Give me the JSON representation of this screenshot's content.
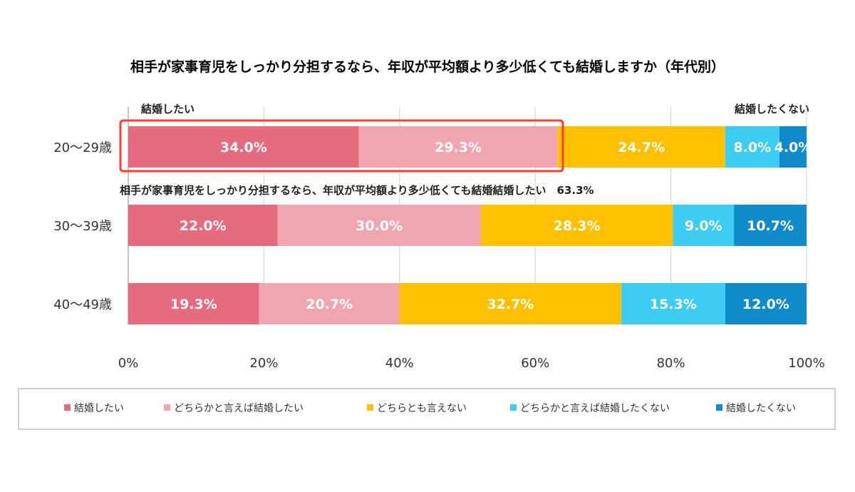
{
  "chart_data": {
    "type": "bar",
    "orientation": "horizontal",
    "stacked": true,
    "percent_stacked": true,
    "title": "相手が家事育児をしっかり分担するなら、年収が平均額より多少低くても結婚しますか（年代別）",
    "categories": [
      "20～29歳",
      "30～39歳",
      "40～49歳"
    ],
    "series": [
      {
        "name": "結婚したい",
        "color": "#e56b7e",
        "values": [
          34.0,
          22.0,
          19.3
        ],
        "labels": [
          "34.0%",
          "22.0%",
          "19.3%"
        ]
      },
      {
        "name": "どちらかと言えば結婚したい",
        "color": "#efa6b1",
        "values": [
          29.3,
          30.0,
          20.7
        ],
        "labels": [
          "29.3%",
          "30.0%",
          "20.7%"
        ]
      },
      {
        "name": "どちらとも言えない",
        "color": "#ffc000",
        "values": [
          24.7,
          28.3,
          32.7
        ],
        "labels": [
          "24.7%",
          "28.3%",
          "32.7%"
        ]
      },
      {
        "name": "どちらかと言えば結婚したくない",
        "color": "#3dccf2",
        "values": [
          8.0,
          9.0,
          15.3
        ],
        "labels": [
          "8.0%",
          "9.0%",
          "15.3%"
        ]
      },
      {
        "name": "結婚したくない",
        "color": "#0e8bc8",
        "values": [
          4.0,
          10.7,
          12.0
        ],
        "labels": [
          "4.0%",
          "10.7%",
          "12.0%"
        ]
      }
    ],
    "xlim": [
      0,
      100
    ],
    "x_ticks": [
      "0%",
      "20%",
      "40%",
      "60%",
      "80%",
      "100%"
    ],
    "grid": true,
    "legend_position": "bottom",
    "left_end_label": "結婚したい",
    "right_end_label": "結婚したくない",
    "highlight": {
      "category": "20～29歳",
      "color": "#ff3b30",
      "text": "相手が家事育児をしっかり分担するなら、年収が平均額より多少低くても結婚結婚したい　63.3%"
    }
  }
}
